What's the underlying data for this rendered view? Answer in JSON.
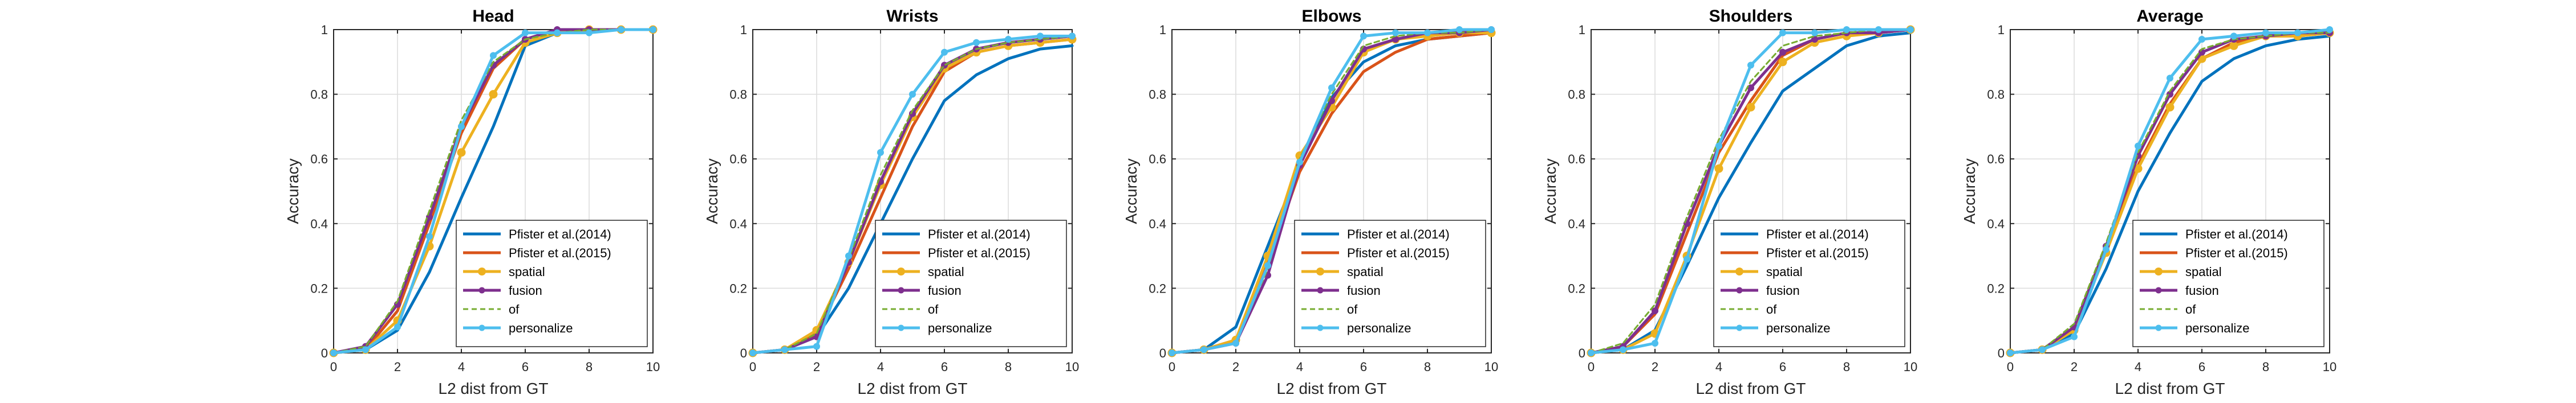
{
  "colors": {
    "pfister2014": "#0072BD",
    "pfister2015": "#D95319",
    "spatial": "#EDB120",
    "fusion": "#7E2F8E",
    "of": "#77AC30",
    "personalize": "#4DBEEE",
    "grid": "#dcdcdc",
    "axis": "#262626"
  },
  "chart_data": [
    {
      "type": "line",
      "title": "Head",
      "xlabel": "L2 dist from GT",
      "ylabel": "Accuracy",
      "xlim": [
        0,
        10
      ],
      "ylim": [
        0,
        1
      ],
      "xticks": [
        "0",
        "2",
        "4",
        "6",
        "8",
        "10"
      ],
      "yticks": [
        "0",
        "0.2",
        "0.4",
        "0.6",
        "0.8",
        "1"
      ],
      "grid": true,
      "legend_position": "bottom-right",
      "x": [
        0,
        1,
        2,
        3,
        4,
        5,
        6,
        7,
        8,
        9,
        10
      ],
      "series": [
        {
          "name": "Pfister et al.(2014)",
          "key": "pfister2014",
          "marker": false,
          "dash": false,
          "values": [
            0,
            0.01,
            0.07,
            0.25,
            0.48,
            0.7,
            0.95,
            0.99,
            1.0,
            1.0,
            1.0
          ]
        },
        {
          "name": "Pfister et al.(2015)",
          "key": "pfister2015",
          "marker": false,
          "dash": false,
          "values": [
            0,
            0.01,
            0.13,
            0.4,
            0.68,
            0.88,
            0.97,
            1.0,
            1.0,
            1.0,
            1.0
          ]
        },
        {
          "name": "spatial",
          "key": "spatial",
          "marker": true,
          "dash": false,
          "values": [
            0,
            0.01,
            0.1,
            0.33,
            0.62,
            0.8,
            0.96,
            0.99,
            1.0,
            1.0,
            1.0
          ]
        },
        {
          "name": "fusion",
          "key": "fusion",
          "marker": true,
          "dash": false,
          "values": [
            0,
            0.02,
            0.15,
            0.42,
            0.7,
            0.89,
            0.97,
            1.0,
            1.0,
            1.0,
            1.0
          ]
        },
        {
          "name": "of",
          "key": "of",
          "marker": false,
          "dash": true,
          "values": [
            0,
            0.02,
            0.16,
            0.44,
            0.72,
            0.9,
            0.97,
            0.99,
            1.0,
            1.0,
            1.0
          ]
        },
        {
          "name": "personalize",
          "key": "personalize",
          "marker": true,
          "dash": false,
          "values": [
            0,
            0.01,
            0.08,
            0.36,
            0.7,
            0.92,
            0.99,
            0.99,
            0.99,
            1.0,
            1.0
          ]
        }
      ]
    },
    {
      "type": "line",
      "title": "Wrists",
      "xlabel": "L2 dist from GT",
      "ylabel": "Accuracy",
      "xlim": [
        0,
        10
      ],
      "ylim": [
        0,
        1
      ],
      "xticks": [
        "0",
        "2",
        "4",
        "6",
        "8",
        "10"
      ],
      "yticks": [
        "0",
        "0.2",
        "0.4",
        "0.6",
        "0.8",
        "1"
      ],
      "grid": true,
      "legend_position": "bottom-right",
      "x": [
        0,
        1,
        2,
        3,
        4,
        5,
        6,
        7,
        8,
        9,
        10
      ],
      "series": [
        {
          "name": "Pfister et al.(2014)",
          "key": "pfister2014",
          "marker": false,
          "dash": false,
          "values": [
            0,
            0.01,
            0.05,
            0.2,
            0.4,
            0.6,
            0.78,
            0.86,
            0.91,
            0.94,
            0.95
          ]
        },
        {
          "name": "Pfister et al.(2015)",
          "key": "pfister2015",
          "marker": false,
          "dash": false,
          "values": [
            0,
            0.01,
            0.06,
            0.26,
            0.48,
            0.7,
            0.87,
            0.93,
            0.95,
            0.96,
            0.97
          ]
        },
        {
          "name": "spatial",
          "key": "spatial",
          "marker": true,
          "dash": false,
          "values": [
            0,
            0.01,
            0.07,
            0.28,
            0.52,
            0.73,
            0.88,
            0.93,
            0.95,
            0.96,
            0.97
          ]
        },
        {
          "name": "fusion",
          "key": "fusion",
          "marker": true,
          "dash": false,
          "values": [
            0,
            0.01,
            0.05,
            0.28,
            0.53,
            0.74,
            0.89,
            0.94,
            0.96,
            0.97,
            0.98
          ]
        },
        {
          "name": "of",
          "key": "of",
          "marker": false,
          "dash": true,
          "values": [
            0,
            0.01,
            0.06,
            0.29,
            0.55,
            0.75,
            0.89,
            0.94,
            0.96,
            0.97,
            0.98
          ]
        },
        {
          "name": "personalize",
          "key": "personalize",
          "marker": true,
          "dash": false,
          "values": [
            0,
            0.01,
            0.02,
            0.3,
            0.62,
            0.8,
            0.93,
            0.96,
            0.97,
            0.98,
            0.98
          ]
        }
      ]
    },
    {
      "type": "line",
      "title": "Elbows",
      "xlabel": "L2 dist from GT",
      "ylabel": "Accuracy",
      "xlim": [
        0,
        10
      ],
      "ylim": [
        0,
        1
      ],
      "xticks": [
        "0",
        "2",
        "4",
        "6",
        "8",
        "10"
      ],
      "yticks": [
        "0",
        "0.2",
        "0.4",
        "0.6",
        "0.8",
        "1"
      ],
      "grid": true,
      "legend_position": "bottom-right",
      "x": [
        0,
        1,
        2,
        3,
        4,
        5,
        6,
        7,
        8,
        9,
        10
      ],
      "series": [
        {
          "name": "Pfister et al.(2014)",
          "key": "pfister2014",
          "marker": false,
          "dash": false,
          "values": [
            0,
            0.01,
            0.08,
            0.33,
            0.58,
            0.79,
            0.9,
            0.95,
            0.97,
            0.98,
            0.99
          ]
        },
        {
          "name": "Pfister et al.(2015)",
          "key": "pfister2015",
          "marker": false,
          "dash": false,
          "values": [
            0,
            0.01,
            0.04,
            0.28,
            0.56,
            0.74,
            0.87,
            0.93,
            0.97,
            0.98,
            0.99
          ]
        },
        {
          "name": "spatial",
          "key": "spatial",
          "marker": true,
          "dash": false,
          "values": [
            0,
            0.01,
            0.04,
            0.3,
            0.61,
            0.76,
            0.93,
            0.97,
            0.98,
            0.99,
            0.99
          ]
        },
        {
          "name": "fusion",
          "key": "fusion",
          "marker": true,
          "dash": false,
          "values": [
            0,
            0.01,
            0.03,
            0.24,
            0.58,
            0.78,
            0.94,
            0.97,
            0.99,
            0.99,
            1.0
          ]
        },
        {
          "name": "of",
          "key": "of",
          "marker": false,
          "dash": true,
          "values": [
            0,
            0.01,
            0.03,
            0.26,
            0.6,
            0.8,
            0.95,
            0.98,
            0.99,
            0.99,
            1.0
          ]
        },
        {
          "name": "personalize",
          "key": "personalize",
          "marker": true,
          "dash": false,
          "values": [
            0,
            0.01,
            0.03,
            0.27,
            0.59,
            0.82,
            0.98,
            0.99,
            0.99,
            1.0,
            1.0
          ]
        }
      ]
    },
    {
      "type": "line",
      "title": "Shoulders",
      "xlabel": "L2 dist from GT",
      "ylabel": "Accuracy",
      "xlim": [
        0,
        10
      ],
      "ylim": [
        0,
        1
      ],
      "xticks": [
        "0",
        "2",
        "4",
        "6",
        "8",
        "10"
      ],
      "yticks": [
        "0",
        "0.2",
        "0.4",
        "0.6",
        "0.8",
        "1"
      ],
      "grid": true,
      "legend_position": "bottom-right",
      "x": [
        0,
        1,
        2,
        3,
        4,
        5,
        6,
        7,
        8,
        9,
        10
      ],
      "series": [
        {
          "name": "Pfister et al.(2014)",
          "key": "pfister2014",
          "marker": false,
          "dash": false,
          "values": [
            0,
            0.01,
            0.07,
            0.27,
            0.48,
            0.65,
            0.81,
            0.88,
            0.95,
            0.98,
            0.99
          ]
        },
        {
          "name": "Pfister et al.(2015)",
          "key": "pfister2015",
          "marker": false,
          "dash": false,
          "values": [
            0,
            0.02,
            0.12,
            0.37,
            0.62,
            0.78,
            0.92,
            0.97,
            0.99,
            0.99,
            1.0
          ]
        },
        {
          "name": "spatial",
          "key": "spatial",
          "marker": true,
          "dash": false,
          "values": [
            0,
            0.01,
            0.06,
            0.3,
            0.57,
            0.76,
            0.9,
            0.96,
            0.98,
            0.99,
            1.0
          ]
        },
        {
          "name": "fusion",
          "key": "fusion",
          "marker": true,
          "dash": false,
          "values": [
            0,
            0.02,
            0.13,
            0.4,
            0.64,
            0.82,
            0.93,
            0.97,
            0.99,
            0.99,
            1.0
          ]
        },
        {
          "name": "of",
          "key": "of",
          "marker": false,
          "dash": true,
          "values": [
            0,
            0.03,
            0.15,
            0.42,
            0.66,
            0.84,
            0.95,
            0.98,
            0.99,
            1.0,
            1.0
          ]
        },
        {
          "name": "personalize",
          "key": "personalize",
          "marker": true,
          "dash": false,
          "values": [
            0,
            0.01,
            0.03,
            0.29,
            0.64,
            0.89,
            0.99,
            0.99,
            1.0,
            1.0,
            1.0
          ]
        }
      ]
    },
    {
      "type": "line",
      "title": "Average",
      "xlabel": "L2 dist from GT",
      "ylabel": "Accuracy",
      "xlim": [
        0,
        10
      ],
      "ylim": [
        0,
        1
      ],
      "xticks": [
        "0",
        "2",
        "4",
        "6",
        "8",
        "10"
      ],
      "yticks": [
        "0",
        "0.2",
        "0.4",
        "0.6",
        "0.8",
        "1"
      ],
      "grid": true,
      "legend_position": "bottom-right",
      "x": [
        0,
        1,
        2,
        3,
        4,
        5,
        6,
        7,
        8,
        9,
        10
      ],
      "series": [
        {
          "name": "Pfister et al.(2014)",
          "key": "pfister2014",
          "marker": false,
          "dash": false,
          "values": [
            0,
            0.01,
            0.06,
            0.26,
            0.5,
            0.68,
            0.84,
            0.91,
            0.95,
            0.97,
            0.98
          ]
        },
        {
          "name": "Pfister et al.(2015)",
          "key": "pfister2015",
          "marker": false,
          "dash": false,
          "values": [
            0,
            0.01,
            0.08,
            0.33,
            0.58,
            0.77,
            0.91,
            0.96,
            0.98,
            0.98,
            0.99
          ]
        },
        {
          "name": "spatial",
          "key": "spatial",
          "marker": true,
          "dash": false,
          "values": [
            0,
            0.01,
            0.07,
            0.31,
            0.57,
            0.76,
            0.91,
            0.95,
            0.98,
            0.98,
            0.99
          ]
        },
        {
          "name": "fusion",
          "key": "fusion",
          "marker": true,
          "dash": false,
          "values": [
            0,
            0.01,
            0.08,
            0.33,
            0.61,
            0.8,
            0.93,
            0.97,
            0.98,
            0.99,
            0.99
          ]
        },
        {
          "name": "of",
          "key": "of",
          "marker": false,
          "dash": true,
          "values": [
            0,
            0.01,
            0.09,
            0.34,
            0.62,
            0.81,
            0.94,
            0.97,
            0.98,
            0.99,
            0.99
          ]
        },
        {
          "name": "personalize",
          "key": "personalize",
          "marker": true,
          "dash": false,
          "values": [
            0,
            0.01,
            0.05,
            0.32,
            0.64,
            0.85,
            0.97,
            0.98,
            0.99,
            0.99,
            1.0
          ]
        }
      ]
    }
  ]
}
